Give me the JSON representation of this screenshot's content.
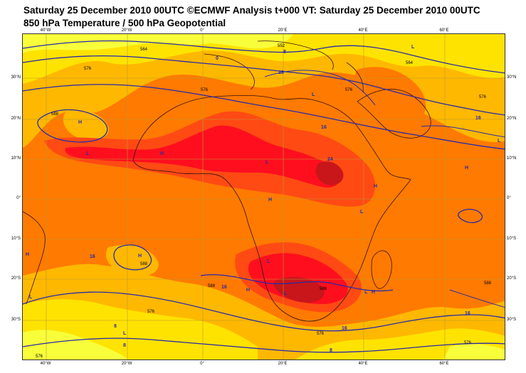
{
  "header": {
    "line1": "Saturday 25 December 2010 00UTC ©ECMWF Analysis t+000 VT: Saturday 25 December 2010 00UTC",
    "line2": "850 hPa Temperature / 500 hPa Geopotential"
  },
  "axes": {
    "lon_top": [
      "40°W",
      "20°W",
      "0°",
      "20°E",
      "40°E",
      "60°E"
    ],
    "lon_bottom": [
      "40°W",
      "20°W",
      "0°",
      "20°E",
      "40°E",
      "60°E"
    ],
    "lat_left": [
      "30°N",
      "20°N",
      "10°N",
      "0°",
      "10°S",
      "20°S",
      "30°S"
    ],
    "lat_right": [
      "30°N",
      "20°N",
      "10°N",
      "0°",
      "10°S",
      "20°S",
      "30°S"
    ]
  },
  "colors": {
    "coldest": "#f8ff3a",
    "cool": "#ffe300",
    "mild": "#ffb800",
    "warm": "#ff7a00",
    "hot": "#ff4a14",
    "hotter": "#ff0f1e",
    "hottest": "#c8161b",
    "contour": "#2a2aa8",
    "coast": "#3a1010",
    "grid": "#b89a30"
  },
  "contour_labels": {
    "geopotential": [
      "564",
      "552",
      "576",
      "576",
      "588",
      "588",
      "564",
      "576",
      "588",
      "588",
      "588",
      "576",
      "576",
      "576",
      "576",
      "576"
    ],
    "temperature": [
      "0",
      "8",
      "16",
      "16",
      "24",
      "16",
      "16",
      "16",
      "16",
      "16",
      "8",
      "8",
      "8"
    ]
  },
  "pressure_labels": {
    "highs": [
      "H",
      "H",
      "H",
      "H",
      "H",
      "H",
      "H",
      "H",
      "H"
    ],
    "lows": [
      "L",
      "L",
      "L",
      "L",
      "L",
      "L",
      "L",
      "L",
      "L",
      "L",
      "L"
    ]
  }
}
